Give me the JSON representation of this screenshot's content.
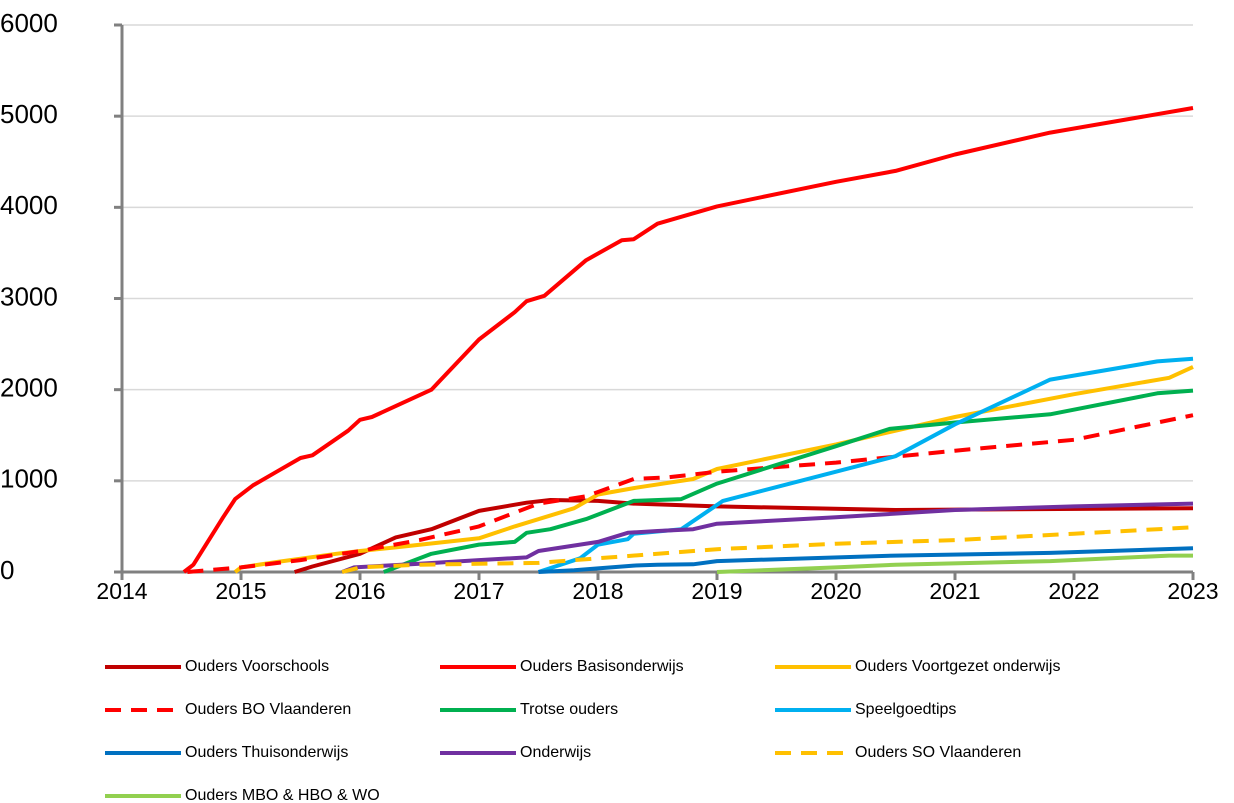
{
  "chart_data": {
    "type": "line",
    "xlim": [
      2014,
      2023
    ],
    "xticks": [
      2014,
      2015,
      2016,
      2017,
      2018,
      2019,
      2020,
      2021,
      2022,
      2023
    ],
    "ylim": [
      0,
      6000
    ],
    "yticks": [
      0,
      1000,
      2000,
      3000,
      4000,
      5000,
      6000
    ],
    "grid": true,
    "legend": "bottom",
    "series": [
      {
        "name": "Ouders Voorschools",
        "color": "#c00000",
        "dashed": false,
        "x": [
          2015.45,
          2015.6,
          2016.0,
          2016.3,
          2016.6,
          2017.0,
          2017.4,
          2017.6,
          2018.0,
          2018.3,
          2019.0,
          2020.5,
          2023.0
        ],
        "values": [
          0,
          60,
          200,
          380,
          470,
          670,
          760,
          790,
          780,
          750,
          720,
          680,
          700
        ]
      },
      {
        "name": "Ouders Basisonderwijs",
        "color": "#ff0000",
        "dashed": false,
        "x": [
          2014.52,
          2014.6,
          2014.85,
          2014.95,
          2015.1,
          2015.3,
          2015.5,
          2015.6,
          2015.9,
          2016.0,
          2016.1,
          2016.3,
          2016.6,
          2017.0,
          2017.3,
          2017.4,
          2017.55,
          2017.9,
          2018.2,
          2018.3,
          2018.5,
          2019.0,
          2020.0,
          2020.5,
          2021.0,
          2021.8,
          2023.0
        ],
        "values": [
          0,
          80,
          600,
          800,
          950,
          1100,
          1250,
          1280,
          1550,
          1670,
          1700,
          1820,
          2000,
          2550,
          2850,
          2970,
          3030,
          3420,
          3640,
          3650,
          3820,
          4010,
          4280,
          4400,
          4580,
          4820,
          5090
        ]
      },
      {
        "name": "Ouders Voortgezet onderwijs",
        "color": "#ffc000",
        "dashed": false,
        "x": [
          2014.95,
          2015.0,
          2015.3,
          2015.8,
          2016.0,
          2016.3,
          2017.0,
          2017.3,
          2017.8,
          2018.0,
          2018.3,
          2018.8,
          2019.0,
          2020.0,
          2021.0,
          2022.0,
          2022.8,
          2023.0
        ],
        "values": [
          0,
          50,
          110,
          200,
          230,
          270,
          370,
          500,
          700,
          850,
          920,
          1020,
          1130,
          1400,
          1700,
          1950,
          2130,
          2250
        ]
      },
      {
        "name": "Ouders BO Vlaanderen",
        "color": "#ff0000",
        "dashed": true,
        "x": [
          2014.55,
          2015.0,
          2015.5,
          2016.0,
          2016.5,
          2017.0,
          2017.5,
          2017.9,
          2018.3,
          2018.6,
          2019.0,
          2020.0,
          2021.0,
          2022.0,
          2023.0
        ],
        "values": [
          0,
          50,
          130,
          230,
          350,
          500,
          750,
          830,
          1020,
          1040,
          1100,
          1200,
          1330,
          1450,
          1720
        ]
      },
      {
        "name": "Trotse ouders",
        "color": "#00b050",
        "dashed": false,
        "x": [
          2016.2,
          2016.6,
          2017.0,
          2017.3,
          2017.4,
          2017.6,
          2017.9,
          2018.3,
          2018.7,
          2019.0,
          2020.0,
          2020.45,
          2021.0,
          2021.8,
          2022.7,
          2023.0
        ],
        "values": [
          0,
          200,
          300,
          330,
          430,
          470,
          580,
          780,
          800,
          970,
          1380,
          1570,
          1640,
          1730,
          1960,
          1990
        ]
      },
      {
        "name": "Speelgoedtips",
        "color": "#00b0f0",
        "dashed": false,
        "x": [
          2017.5,
          2017.85,
          2018.0,
          2018.25,
          2018.3,
          2018.7,
          2019.05,
          2020.0,
          2020.5,
          2021.0,
          2021.8,
          2022.7,
          2023.0
        ],
        "values": [
          0,
          150,
          300,
          360,
          420,
          470,
          780,
          1100,
          1270,
          1620,
          2110,
          2310,
          2340
        ]
      },
      {
        "name": "Ouders Thuisonderwijs",
        "color": "#0070c0",
        "dashed": false,
        "x": [
          2017.5,
          2017.8,
          2018.0,
          2018.3,
          2018.5,
          2018.8,
          2019.0,
          2020.5,
          2021.8,
          2023.0
        ],
        "values": [
          0,
          20,
          40,
          70,
          80,
          85,
          120,
          180,
          210,
          260
        ]
      },
      {
        "name": "Onderwijs",
        "color": "#7030a0",
        "dashed": false,
        "x": [
          2015.85,
          2015.95,
          2016.5,
          2017.0,
          2017.4,
          2017.5,
          2018.0,
          2018.25,
          2018.5,
          2018.8,
          2019.0,
          2020.0,
          2021.0,
          2022.0,
          2023.0
        ],
        "values": [
          0,
          50,
          90,
          130,
          160,
          230,
          330,
          430,
          450,
          470,
          530,
          600,
          680,
          720,
          750
        ]
      },
      {
        "name": "Ouders SO Vlaanderen",
        "color": "#ffc000",
        "dashed": true,
        "x": [
          2015.85,
          2016.0,
          2016.5,
          2017.0,
          2017.5,
          2018.0,
          2019.0,
          2020.0,
          2021.0,
          2022.0,
          2023.0
        ],
        "values": [
          0,
          50,
          80,
          90,
          100,
          150,
          250,
          310,
          350,
          420,
          490
        ]
      },
      {
        "name": "Ouders MBO & HBO & WO",
        "color": "#92d050",
        "dashed": false,
        "x": [
          2019.0,
          2020.0,
          2020.5,
          2021.8,
          2022.8,
          2023.0
        ],
        "values": [
          0,
          50,
          80,
          120,
          180,
          180
        ]
      }
    ]
  }
}
